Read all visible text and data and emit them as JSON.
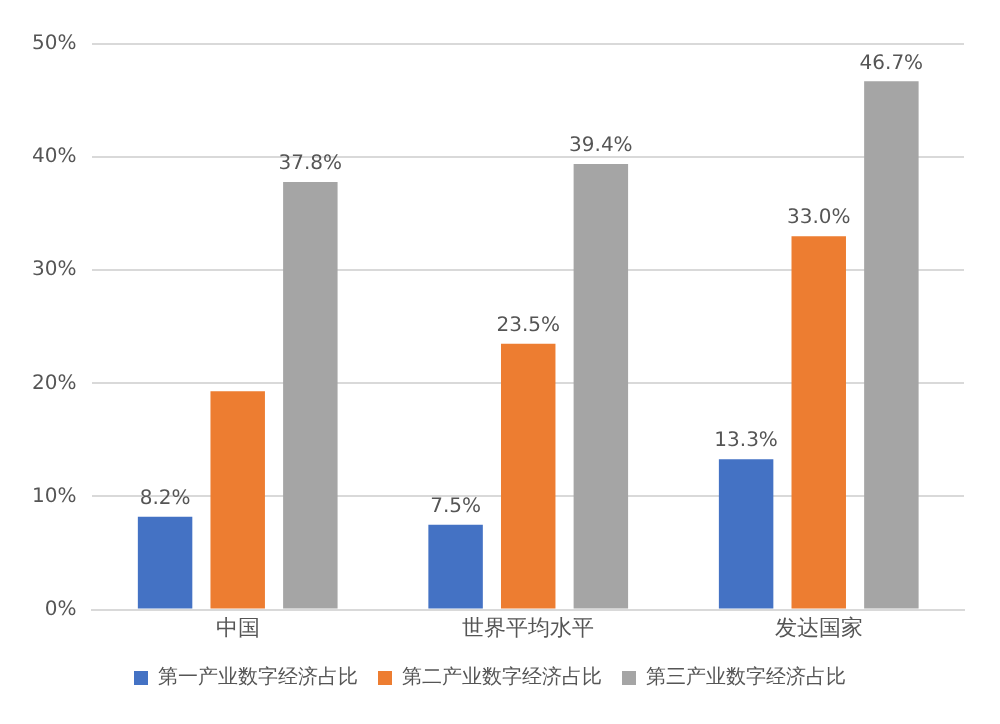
{
  "chart_data": {
    "type": "bar",
    "categories": [
      "中国",
      "世界平均水平",
      "发达国家"
    ],
    "series": [
      {
        "name": "第一产业数字经济占比",
        "color": "#4472c4",
        "values": [
          8.2,
          7.5,
          13.3
        ],
        "value_labels": [
          "8.2%",
          "7.5%",
          "13.3%"
        ]
      },
      {
        "name": "第二产业数字经济占比",
        "color": "#ed7d31",
        "values": [
          19.3,
          23.5,
          33.0
        ],
        "value_labels": [
          null,
          "23.5%",
          "33.0%"
        ]
      },
      {
        "name": "第三产业数字经济占比",
        "color": "#a5a5a5",
        "values": [
          37.8,
          39.4,
          46.7
        ],
        "value_labels": [
          "37.8%",
          "39.4%",
          "46.7%"
        ]
      }
    ],
    "ylim": [
      0,
      50
    ],
    "yticks": [
      {
        "value": 0,
        "label": "0%"
      },
      {
        "value": 10,
        "label": "10%"
      },
      {
        "value": 20,
        "label": "20%"
      },
      {
        "value": 30,
        "label": "30%"
      },
      {
        "value": 40,
        "label": "40%"
      },
      {
        "value": 50,
        "label": "50%"
      }
    ],
    "grid": "y",
    "legend": "bottom"
  }
}
